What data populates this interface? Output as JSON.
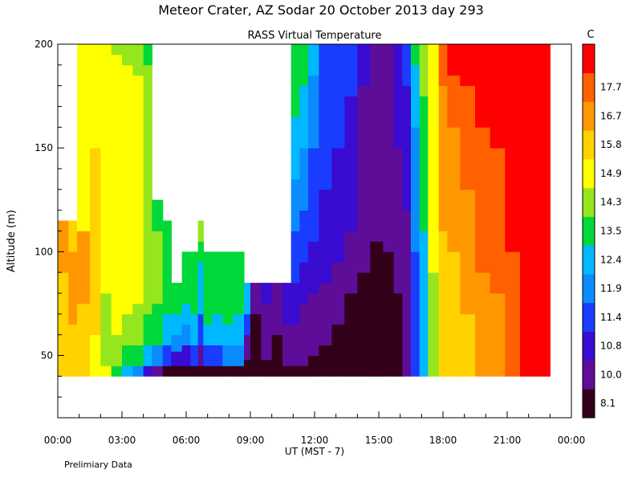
{
  "page": {
    "title": "Meteor Crater, AZ  Sodar  20 October 2013  day 293",
    "subtitle": "RASS Virtual Temperature",
    "footnote": "Prelimiary Data"
  },
  "chart_data": {
    "type": "heatmap",
    "xlabel": "UT  (MST - 7)",
    "ylabel": "Altitude (m)",
    "x_ticks": [
      "00:00",
      "03:00",
      "06:00",
      "09:00",
      "12:00",
      "15:00",
      "18:00",
      "21:00",
      "00:00"
    ],
    "x_range_hours": [
      0,
      24
    ],
    "y_ticks": [
      50,
      100,
      150,
      200
    ],
    "ylim": [
      20,
      200
    ],
    "colorbar": {
      "unit": "C",
      "levels": [
        "8.1",
        "10.0",
        "10.8",
        "11.4",
        "11.9",
        "12.4",
        "13.5",
        "14.3",
        "14.9",
        "15.8",
        "16.7",
        "17.7"
      ],
      "colors": [
        "#33001a",
        "#5e0d99",
        "#3a0bd0",
        "#1a3cff",
        "#0a8cff",
        "#00b8ff",
        "#00d83a",
        "#96e61e",
        "#ffff00",
        "#ffd200",
        "#ff9800",
        "#ff6000",
        "#ff0000"
      ]
    },
    "columns": [
      {
        "t": 0.0,
        "bottom": 40,
        "top": 115,
        "bands": [
          [
            0,
            9
          ],
          [
            90,
            10
          ]
        ]
      },
      {
        "t": 0.5,
        "bottom": 40,
        "top": 115,
        "bands": [
          [
            0,
            9
          ],
          [
            65,
            10
          ],
          [
            100,
            9
          ]
        ]
      },
      {
        "t": 0.9,
        "bottom": 40,
        "top": 200,
        "bands": [
          [
            0,
            9
          ],
          [
            75,
            10
          ],
          [
            110,
            8
          ]
        ]
      },
      {
        "t": 1.5,
        "bottom": 40,
        "top": 200,
        "bands": [
          [
            0,
            8
          ],
          [
            60,
            9
          ],
          [
            150,
            8
          ]
        ]
      },
      {
        "t": 2.0,
        "bottom": 40,
        "top": 200,
        "bands": [
          [
            0,
            8
          ],
          [
            45,
            7
          ],
          [
            80,
            8
          ]
        ]
      },
      {
        "t": 2.5,
        "bottom": 40,
        "top": 200,
        "bands": [
          [
            0,
            6
          ],
          [
            45,
            7
          ],
          [
            60,
            8
          ],
          [
            195,
            7
          ]
        ]
      },
      {
        "t": 3.0,
        "bottom": 40,
        "top": 200,
        "bands": [
          [
            0,
            5
          ],
          [
            45,
            6
          ],
          [
            55,
            7
          ],
          [
            70,
            8
          ],
          [
            190,
            7
          ]
        ]
      },
      {
        "t": 3.5,
        "bottom": 40,
        "top": 200,
        "bands": [
          [
            0,
            4
          ],
          [
            45,
            6
          ],
          [
            55,
            7
          ],
          [
            75,
            8
          ],
          [
            185,
            7
          ]
        ]
      },
      {
        "t": 4.0,
        "bottom": 40,
        "top": 200,
        "bands": [
          [
            0,
            2
          ],
          [
            45,
            5
          ],
          [
            55,
            6
          ],
          [
            70,
            7
          ],
          [
            190,
            6
          ]
        ]
      },
      {
        "t": 4.4,
        "bottom": 40,
        "top": 125,
        "bands": [
          [
            0,
            1
          ],
          [
            45,
            4
          ],
          [
            55,
            6
          ],
          [
            75,
            7
          ],
          [
            110,
            6
          ]
        ]
      },
      {
        "t": 4.9,
        "bottom": 40,
        "top": 115,
        "bands": [
          [
            0,
            0
          ],
          [
            45,
            3
          ],
          [
            55,
            5
          ],
          [
            70,
            6
          ]
        ]
      },
      {
        "t": 5.3,
        "bottom": 40,
        "top": 85,
        "bands": [
          [
            0,
            0
          ],
          [
            45,
            2
          ],
          [
            52,
            4
          ],
          [
            60,
            5
          ],
          [
            70,
            6
          ]
        ]
      },
      {
        "t": 5.8,
        "bottom": 40,
        "top": 100,
        "bands": [
          [
            0,
            0
          ],
          [
            45,
            2
          ],
          [
            55,
            4
          ],
          [
            65,
            5
          ],
          [
            75,
            6
          ]
        ]
      },
      {
        "t": 6.2,
        "bottom": 40,
        "top": 100,
        "bands": [
          [
            0,
            0
          ],
          [
            45,
            3
          ],
          [
            55,
            5
          ],
          [
            70,
            6
          ]
        ]
      },
      {
        "t": 6.55,
        "bottom": 40,
        "top": 115,
        "bands": [
          [
            0,
            0
          ],
          [
            45,
            1
          ],
          [
            55,
            3
          ],
          [
            70,
            5
          ],
          [
            95,
            6
          ],
          [
            105,
            7
          ]
        ]
      },
      {
        "t": 6.8,
        "bottom": 40,
        "top": 100,
        "bands": [
          [
            0,
            0
          ],
          [
            45,
            3
          ],
          [
            55,
            5
          ],
          [
            65,
            6
          ]
        ]
      },
      {
        "t": 7.2,
        "bottom": 40,
        "top": 100,
        "bands": [
          [
            0,
            0
          ],
          [
            45,
            3
          ],
          [
            55,
            5
          ],
          [
            70,
            6
          ]
        ]
      },
      {
        "t": 7.7,
        "bottom": 40,
        "top": 100,
        "bands": [
          [
            0,
            0
          ],
          [
            45,
            4
          ],
          [
            55,
            5
          ],
          [
            65,
            6
          ]
        ]
      },
      {
        "t": 8.2,
        "bottom": 40,
        "top": 100,
        "bands": [
          [
            0,
            0
          ],
          [
            45,
            4
          ],
          [
            55,
            5
          ],
          [
            70,
            6
          ]
        ]
      },
      {
        "t": 8.7,
        "bottom": 40,
        "top": 85,
        "bands": [
          [
            0,
            0
          ],
          [
            48,
            1
          ],
          [
            60,
            3
          ],
          [
            70,
            5
          ]
        ]
      },
      {
        "t": 9.0,
        "bottom": 40,
        "top": 85,
        "bands": [
          [
            0,
            0
          ],
          [
            70,
            1
          ]
        ]
      },
      {
        "t": 9.5,
        "bottom": 40,
        "top": 85,
        "bands": [
          [
            0,
            0
          ],
          [
            48,
            1
          ],
          [
            75,
            2
          ]
        ]
      },
      {
        "t": 10.0,
        "bottom": 40,
        "top": 85,
        "bands": [
          [
            0,
            0
          ],
          [
            60,
            1
          ]
        ]
      },
      {
        "t": 10.5,
        "bottom": 40,
        "top": 85,
        "bands": [
          [
            0,
            0
          ],
          [
            45,
            1
          ],
          [
            65,
            2
          ]
        ]
      },
      {
        "t": 10.9,
        "bottom": 40,
        "top": 200,
        "bands": [
          [
            0,
            0
          ],
          [
            45,
            1
          ],
          [
            65,
            2
          ],
          [
            85,
            3
          ],
          [
            110,
            4
          ],
          [
            135,
            5
          ],
          [
            165,
            6
          ]
        ]
      },
      {
        "t": 11.3,
        "bottom": 40,
        "top": 200,
        "bands": [
          [
            0,
            0
          ],
          [
            45,
            1
          ],
          [
            75,
            2
          ],
          [
            95,
            3
          ],
          [
            120,
            4
          ],
          [
            150,
            5
          ],
          [
            180,
            6
          ]
        ]
      },
      {
        "t": 11.7,
        "bottom": 40,
        "top": 200,
        "bands": [
          [
            0,
            0
          ],
          [
            50,
            1
          ],
          [
            80,
            2
          ],
          [
            105,
            3
          ],
          [
            150,
            4
          ],
          [
            185,
            5
          ]
        ]
      },
      {
        "t": 12.2,
        "bottom": 40,
        "top": 200,
        "bands": [
          [
            0,
            0
          ],
          [
            55,
            1
          ],
          [
            85,
            2
          ],
          [
            130,
            3
          ]
        ]
      },
      {
        "t": 12.8,
        "bottom": 40,
        "top": 200,
        "bands": [
          [
            0,
            0
          ],
          [
            65,
            1
          ],
          [
            95,
            2
          ],
          [
            150,
            3
          ]
        ]
      },
      {
        "t": 13.4,
        "bottom": 40,
        "top": 200,
        "bands": [
          [
            0,
            0
          ],
          [
            80,
            1
          ],
          [
            110,
            2
          ],
          [
            175,
            3
          ]
        ]
      },
      {
        "t": 14.0,
        "bottom": 40,
        "top": 200,
        "bands": [
          [
            0,
            0
          ],
          [
            90,
            1
          ],
          [
            180,
            2
          ]
        ]
      },
      {
        "t": 14.6,
        "bottom": 40,
        "top": 200,
        "bands": [
          [
            0,
            0
          ],
          [
            105,
            1
          ]
        ]
      },
      {
        "t": 15.2,
        "bottom": 40,
        "top": 200,
        "bands": [
          [
            0,
            0
          ],
          [
            100,
            1
          ]
        ]
      },
      {
        "t": 15.7,
        "bottom": 40,
        "top": 200,
        "bands": [
          [
            0,
            0
          ],
          [
            80,
            1
          ],
          [
            150,
            2
          ]
        ]
      },
      {
        "t": 16.1,
        "bottom": 40,
        "top": 200,
        "bands": [
          [
            0,
            1
          ],
          [
            120,
            2
          ],
          [
            180,
            3
          ]
        ]
      },
      {
        "t": 16.5,
        "bottom": 40,
        "top": 200,
        "bands": [
          [
            0,
            3
          ],
          [
            100,
            4
          ],
          [
            160,
            5
          ],
          [
            190,
            6
          ]
        ]
      },
      {
        "t": 16.9,
        "bottom": 40,
        "top": 200,
        "bands": [
          [
            0,
            5
          ],
          [
            110,
            6
          ],
          [
            175,
            7
          ]
        ]
      },
      {
        "t": 17.3,
        "bottom": 40,
        "top": 200,
        "bands": [
          [
            0,
            7
          ],
          [
            90,
            8
          ]
        ]
      },
      {
        "t": 17.8,
        "bottom": 40,
        "top": 200,
        "bands": [
          [
            0,
            9
          ],
          [
            110,
            10
          ],
          [
            180,
            11
          ]
        ]
      },
      {
        "t": 18.2,
        "bottom": 40,
        "top": 200,
        "bands": [
          [
            0,
            9
          ],
          [
            100,
            10
          ],
          [
            160,
            11
          ],
          [
            185,
            12
          ]
        ]
      },
      {
        "t": 18.8,
        "bottom": 40,
        "top": 200,
        "bands": [
          [
            0,
            9
          ],
          [
            70,
            10
          ],
          [
            130,
            11
          ],
          [
            180,
            12
          ]
        ]
      },
      {
        "t": 19.5,
        "bottom": 40,
        "top": 200,
        "bands": [
          [
            0,
            10
          ],
          [
            90,
            11
          ],
          [
            160,
            12
          ]
        ]
      },
      {
        "t": 20.2,
        "bottom": 40,
        "top": 200,
        "bands": [
          [
            0,
            10
          ],
          [
            80,
            11
          ],
          [
            150,
            12
          ]
        ]
      },
      {
        "t": 20.9,
        "bottom": 40,
        "top": 200,
        "bands": [
          [
            0,
            11
          ],
          [
            100,
            12
          ]
        ]
      },
      {
        "t": 21.6,
        "bottom": 40,
        "top": 200,
        "bands": [
          [
            0,
            12
          ]
        ]
      },
      {
        "t": 22.5,
        "bottom": 40,
        "top": 200,
        "bands": [
          [
            0,
            12
          ]
        ]
      },
      {
        "t": 23.0,
        "bottom": 40,
        "top": 200,
        "bands": [
          [
            0,
            12
          ]
        ]
      }
    ],
    "end_hour": 23.0,
    "grid": false
  }
}
